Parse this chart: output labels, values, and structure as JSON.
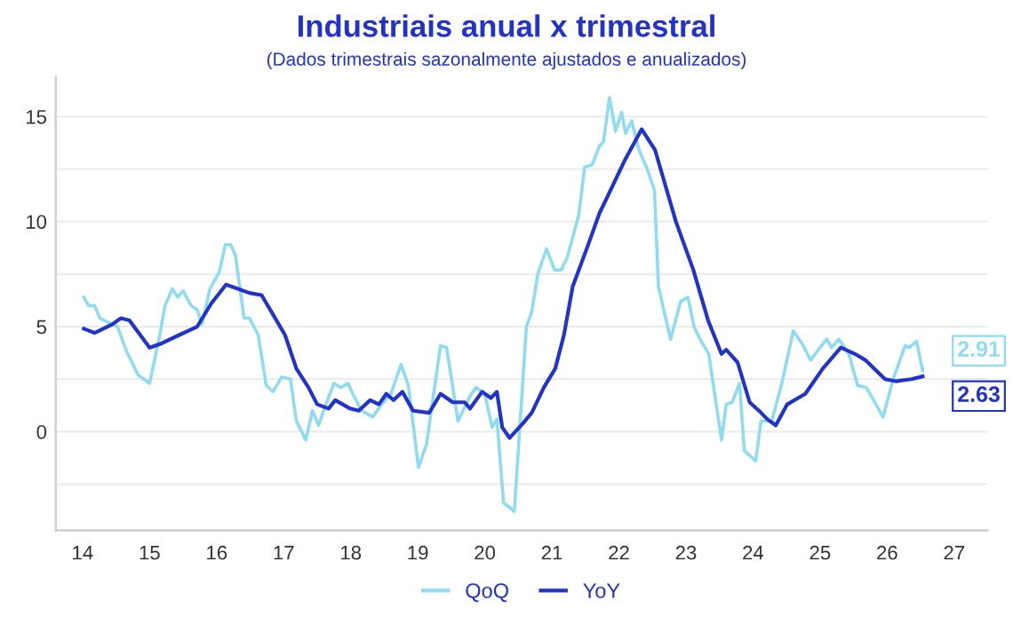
{
  "chart_data": {
    "type": "line",
    "title": "Industriais anual x trimestral",
    "subtitle": "(Dados trimestrais sazonalmente ajustados e anualizados)",
    "xlim": [
      13.6,
      27.5
    ],
    "xticks": [
      14,
      15,
      16,
      17,
      18,
      19,
      20,
      21,
      22,
      23,
      24,
      25,
      26,
      27
    ],
    "ylim": [
      -4.7,
      16.9
    ],
    "yticks": [
      {
        "value": -2.5,
        "label": null
      },
      0,
      {
        "value": 2.5,
        "label": null
      },
      5,
      {
        "value": 7.5,
        "label": null
      },
      10,
      {
        "value": 12.5,
        "label": null
      },
      15
    ],
    "grid": "y",
    "legend": "bottom",
    "line_style": "solid",
    "series": [
      {
        "name": "QoQ",
        "color": "#8fdcf2",
        "x": [
          14.02,
          14.09,
          14.18,
          14.26,
          14.39,
          14.52,
          14.66,
          14.83,
          15.0,
          15.14,
          15.23,
          15.34,
          15.42,
          15.5,
          15.62,
          15.71,
          15.78,
          15.9,
          16.04,
          16.13,
          16.21,
          16.28,
          16.41,
          16.49,
          16.62,
          16.74,
          16.84,
          16.97,
          17.1,
          17.19,
          17.33,
          17.43,
          17.52,
          17.63,
          17.75,
          17.85,
          17.96,
          18.03,
          18.16,
          18.33,
          18.46,
          18.6,
          18.75,
          18.86,
          19.01,
          19.13,
          19.34,
          19.43,
          19.6,
          19.78,
          19.87,
          20.0,
          20.11,
          20.18,
          20.28,
          20.37,
          20.44,
          20.62,
          20.7,
          20.79,
          20.92,
          21.04,
          21.14,
          21.23,
          21.4,
          21.49,
          21.6,
          21.71,
          21.77,
          21.86,
          21.95,
          22.04,
          22.1,
          22.19,
          22.3,
          22.41,
          22.53,
          22.59,
          22.77,
          22.92,
          23.03,
          23.12,
          23.21,
          23.34,
          23.53,
          23.6,
          23.69,
          23.8,
          23.87,
          24.04,
          24.12,
          24.28,
          24.43,
          24.6,
          24.73,
          24.86,
          24.95,
          25.1,
          25.17,
          25.28,
          25.43,
          25.56,
          25.69,
          25.94,
          26.09,
          26.27,
          26.33,
          26.44,
          26.53
        ],
        "values": [
          6.4,
          6.0,
          6.0,
          5.4,
          5.2,
          5.0,
          3.8,
          2.7,
          2.3,
          4.4,
          6.0,
          6.8,
          6.4,
          6.7,
          6.0,
          5.8,
          5.1,
          6.8,
          7.6,
          8.9,
          8.9,
          8.4,
          5.4,
          5.4,
          4.6,
          2.2,
          1.9,
          2.6,
          2.5,
          0.5,
          -0.4,
          1.0,
          0.3,
          1.3,
          2.3,
          2.1,
          2.3,
          1.8,
          1.0,
          0.7,
          1.3,
          1.8,
          3.2,
          2.2,
          -1.7,
          -0.6,
          4.1,
          4.0,
          0.5,
          1.7,
          2.1,
          1.8,
          0.2,
          0.6,
          -3.4,
          -3.6,
          -3.8,
          5.0,
          5.7,
          7.5,
          8.7,
          7.7,
          7.7,
          8.3,
          10.3,
          12.6,
          12.7,
          13.6,
          13.8,
          15.9,
          14.3,
          15.2,
          14.2,
          14.8,
          13.4,
          12.6,
          11.5,
          6.9,
          4.4,
          6.2,
          6.4,
          5.0,
          4.4,
          3.7,
          -0.4,
          1.3,
          1.4,
          2.3,
          -0.9,
          -1.4,
          0.5,
          0.5,
          2.3,
          4.8,
          4.2,
          3.4,
          3.8,
          4.4,
          4.0,
          4.4,
          3.7,
          2.2,
          2.1,
          0.7,
          2.5,
          4.1,
          4.0,
          4.3,
          2.91
        ]
      },
      {
        "name": "YoY",
        "color": "#2233cc",
        "x": [
          14.02,
          14.18,
          14.31,
          14.44,
          14.57,
          14.7,
          15.0,
          15.18,
          15.44,
          15.71,
          15.92,
          16.14,
          16.32,
          16.49,
          16.67,
          16.8,
          17.02,
          17.19,
          17.37,
          17.5,
          17.67,
          17.77,
          17.99,
          18.12,
          18.29,
          18.42,
          18.53,
          18.64,
          18.77,
          18.93,
          19.17,
          19.34,
          19.52,
          19.7,
          19.78,
          19.96,
          20.09,
          20.18,
          20.26,
          20.37,
          20.57,
          20.7,
          20.88,
          21.05,
          21.18,
          21.31,
          21.53,
          21.71,
          21.86,
          22.1,
          22.34,
          22.54,
          22.85,
          23.11,
          23.33,
          23.53,
          23.6,
          23.77,
          23.95,
          24.12,
          24.21,
          24.34,
          24.51,
          24.78,
          25.04,
          25.31,
          25.52,
          25.68,
          25.97,
          26.13,
          26.36,
          26.53
        ],
        "values": [
          4.9,
          4.7,
          4.9,
          5.1,
          5.4,
          5.3,
          4.0,
          4.2,
          4.6,
          5.0,
          6.1,
          7.0,
          6.8,
          6.6,
          6.5,
          5.8,
          4.6,
          3.0,
          2.1,
          1.3,
          1.1,
          1.5,
          1.1,
          1.0,
          1.5,
          1.3,
          1.8,
          1.5,
          1.9,
          1.0,
          0.9,
          1.8,
          1.4,
          1.4,
          1.1,
          1.9,
          1.6,
          1.9,
          0.2,
          -0.3,
          0.4,
          0.9,
          2.1,
          3.0,
          4.6,
          6.9,
          8.8,
          10.4,
          11.4,
          13.0,
          14.4,
          13.4,
          10.0,
          7.7,
          5.3,
          3.7,
          3.9,
          3.3,
          1.4,
          0.9,
          0.6,
          0.3,
          1.3,
          1.8,
          3.0,
          4.0,
          3.7,
          3.4,
          2.5,
          2.4,
          2.5,
          2.63
        ]
      }
    ],
    "annotations": [
      {
        "text": "2.91",
        "x": 26.53,
        "y": 2.91
      },
      {
        "text": "2.63",
        "x": 26.53,
        "y": 2.63
      }
    ]
  }
}
